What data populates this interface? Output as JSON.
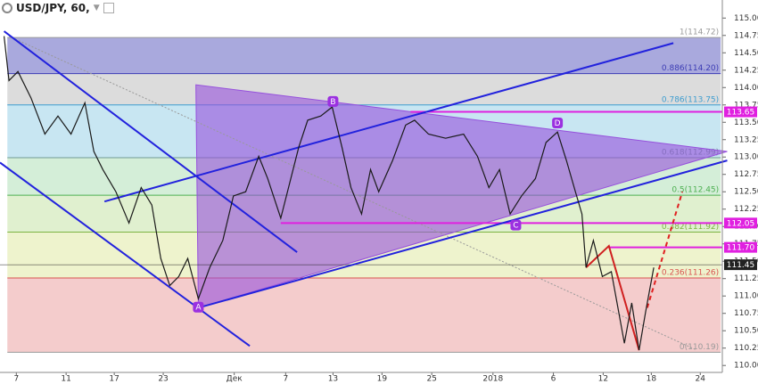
{
  "chart_data": {
    "type": "line",
    "title": "USD/JPY, 60,",
    "xlim": [
      0,
      88.5
    ],
    "ylim": [
      109.9,
      115.26
    ],
    "xticks": [
      {
        "value": 2,
        "label": "7"
      },
      {
        "value": 8.1,
        "label": "11"
      },
      {
        "value": 14,
        "label": "17"
      },
      {
        "value": 20,
        "label": "23"
      },
      {
        "value": 28.7,
        "label": "Дек"
      },
      {
        "value": 35,
        "label": "7"
      },
      {
        "value": 40.8,
        "label": "13"
      },
      {
        "value": 46.8,
        "label": "19"
      },
      {
        "value": 52.9,
        "label": "25"
      },
      {
        "value": 60.4,
        "label": "2018"
      },
      {
        "value": 67.8,
        "label": "6"
      },
      {
        "value": 73.9,
        "label": "12"
      },
      {
        "value": 79.8,
        "label": "18"
      },
      {
        "value": 85.8,
        "label": "24"
      }
    ],
    "yticks": [
      {
        "value": 110,
        "label": "110.00"
      },
      {
        "value": 110.25,
        "label": "110.25"
      },
      {
        "value": 110.5,
        "label": "110.50"
      },
      {
        "value": 110.75,
        "label": "110.75"
      },
      {
        "value": 111,
        "label": "111.00"
      },
      {
        "value": 111.25,
        "label": "111.25"
      },
      {
        "value": 111.5,
        "label": "111.50"
      },
      {
        "value": 111.75,
        "label": "111.75"
      },
      {
        "value": 112,
        "label": "112.00"
      },
      {
        "value": 112.25,
        "label": "112.25"
      },
      {
        "value": 112.5,
        "label": "112.50"
      },
      {
        "value": 112.75,
        "label": "112.75"
      },
      {
        "value": 113,
        "label": "113.00"
      },
      {
        "value": 113.25,
        "label": "113.25"
      },
      {
        "value": 113.5,
        "label": "113.50"
      },
      {
        "value": 113.75,
        "label": "113.75"
      },
      {
        "value": 114,
        "label": "114.00"
      },
      {
        "value": 114.25,
        "label": "114.25"
      },
      {
        "value": 114.5,
        "label": "114.50"
      },
      {
        "value": 114.75,
        "label": "114.75"
      },
      {
        "value": 115,
        "label": "115.00"
      }
    ],
    "series": [
      {
        "name": "USD/JPY",
        "color": "#1a1a1a",
        "x": [
          0.5,
          1.1,
          2.2,
          3.8,
          5.5,
          7.1,
          8.7,
          10.4,
          11.5,
          12.6,
          14.2,
          15.8,
          17.3,
          18.6,
          19.7,
          20.8,
          21.9,
          23.0,
          24.3,
          25.7,
          27.3,
          28.6,
          30.1,
          31.7,
          32.8,
          34.4,
          35.5,
          36.6,
          37.7,
          39.3,
          40.7,
          41.9,
          43.0,
          44.3,
          45.4,
          46.4,
          48.1,
          49.7,
          50.8,
          52.5,
          54.6,
          56.8,
          58.5,
          59.9,
          61.2,
          62.5,
          63.9,
          65.6,
          66.9,
          68.3,
          69.4,
          70.5,
          71.3,
          71.8,
          72.7,
          73.8,
          74.9,
          75.6,
          76.5,
          77.4,
          78.3,
          79.1,
          80.1
        ],
        "values": [
          114.74,
          114.1,
          114.23,
          113.85,
          113.33,
          113.59,
          113.33,
          113.78,
          113.08,
          112.82,
          112.5,
          112.05,
          112.56,
          112.31,
          111.54,
          111.15,
          111.28,
          111.54,
          110.96,
          111.41,
          111.8,
          112.44,
          112.5,
          113.01,
          112.69,
          112.12,
          112.63,
          113.14,
          113.53,
          113.59,
          113.72,
          113.14,
          112.56,
          112.18,
          112.82,
          112.5,
          112.95,
          113.46,
          113.53,
          113.33,
          113.27,
          113.33,
          113.01,
          112.56,
          112.82,
          112.18,
          112.44,
          112.69,
          113.21,
          113.36,
          112.95,
          112.5,
          112.18,
          111.41,
          111.8,
          111.28,
          111.35,
          110.9,
          110.32,
          110.9,
          110.22,
          110.77,
          111.41
        ]
      }
    ],
    "fib_x": [
      0.9,
      88.3
    ],
    "fib_levels": [
      {
        "label": "1(114.72)",
        "value": 114.72,
        "color": "#9a9a9a",
        "fill": "#a9a9dd"
      },
      {
        "label": "0.886(114.20)",
        "value": 114.2,
        "color": "#3c3cb4",
        "fill": "#dcdcdc"
      },
      {
        "label": "0.786(113.75)",
        "value": 113.75,
        "color": "#3c9ccf",
        "fill": "#c8e6f2"
      },
      {
        "label": "0.618(112.99)",
        "value": 112.99,
        "color": "#6f9a94",
        "fill": "#d4eed8"
      },
      {
        "label": "0.5(112.45)",
        "value": 112.45,
        "color": "#4caf50",
        "fill": "#e0f0cf"
      },
      {
        "label": "0.382(111.92)",
        "value": 111.92,
        "color": "#7cb342",
        "fill": "#eef3cd"
      },
      {
        "label": "0.236(111.26)",
        "value": 111.26,
        "color": "#d9534f",
        "fill": "#f4cccc"
      },
      {
        "label": "0(110.19)",
        "value": 110.19,
        "color": "#9a9a9a"
      }
    ],
    "triangle": {
      "color": "#9650dc",
      "x": [
        24.0,
        24.3,
        89.1
      ],
      "values": [
        114.04,
        110.83,
        113.08
      ]
    },
    "trendlines": [
      {
        "color": "#2222dd",
        "x": [
          0.5,
          36.4
        ],
        "values": [
          114.81,
          111.63
        ]
      },
      {
        "color": "#2222dd",
        "x": [
          0,
          30.6
        ],
        "values": [
          112.92,
          110.28
        ]
      },
      {
        "color": "#2222dd",
        "x": [
          12.8,
          82.5
        ],
        "values": [
          112.36,
          114.64
        ]
      },
      {
        "color": "#2222dd",
        "x": [
          24.3,
          89.1
        ],
        "values": [
          110.83,
          112.95
        ]
      },
      {
        "color": "#d02020",
        "x": [
          71.8,
          74.6,
          78.3
        ],
        "values": [
          111.41,
          111.72,
          110.22
        ]
      }
    ],
    "projection": {
      "color": "#e02020",
      "x": [
        79.3,
        83.6
      ],
      "values": [
        110.83,
        112.5
      ]
    },
    "diagonal": {
      "color": "#999999",
      "x": [
        1.1,
        85.2
      ],
      "values": [
        114.74,
        110.23
      ]
    },
    "points": [
      {
        "label": "A",
        "x": 24.3,
        "value": 110.84
      },
      {
        "label": "B",
        "x": 40.8,
        "value": 113.8
      },
      {
        "label": "C",
        "x": 63.2,
        "value": 112.02
      },
      {
        "label": "D",
        "x": 68.3,
        "value": 113.49
      }
    ],
    "price_lines": [
      {
        "label": "113.65",
        "value": 113.65,
        "color": "#e020e0",
        "start": 50.3
      },
      {
        "label": "112.05",
        "value": 112.05,
        "color": "#e020e0",
        "start": 34.4
      },
      {
        "label": "111.70",
        "value": 111.7,
        "color": "#e020e0",
        "start": 74.6
      },
      {
        "label": "111.45",
        "value": 111.45,
        "color": "#222222",
        "start": 0
      }
    ]
  }
}
